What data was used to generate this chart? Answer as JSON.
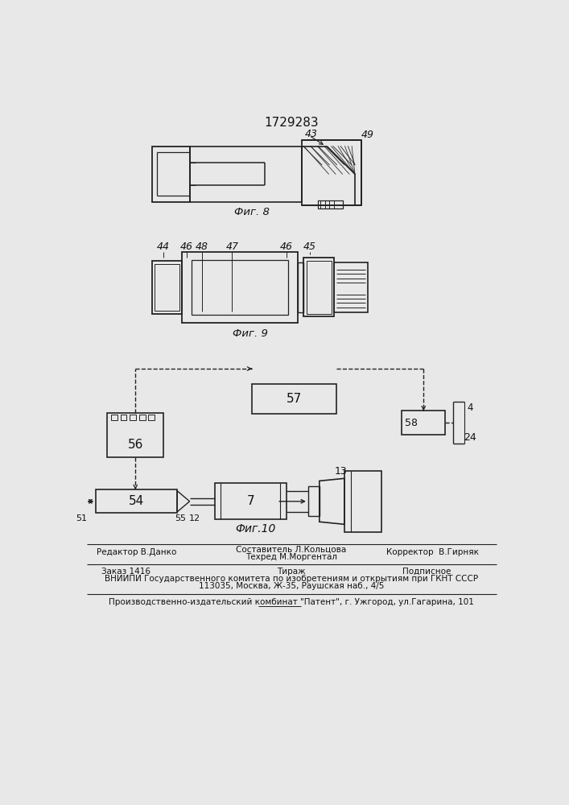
{
  "patent_number": "1729283",
  "fig8_label": "Фиг. 8",
  "fig9_label": "Фиг. 9",
  "fig10_label": "Фиг.10",
  "label_43": "43",
  "label_49": "49",
  "label_44": "44",
  "label_46a": "46",
  "label_48": "48",
  "label_47": "47",
  "label_46b": "46",
  "label_45": "45",
  "label_57": "57",
  "label_56": "56",
  "label_54": "54",
  "label_51": "51",
  "label_55": "55",
  "label_12": "12",
  "label_7": "7",
  "label_13": "13",
  "label_58": "58",
  "label_4": "4",
  "label_24": "24",
  "footer_line1_left": "Редактор В.Данко",
  "footer_line1_mid1": "Составитель Л.Кольцова",
  "footer_line1_mid2": "Техред М.Моргентал",
  "footer_line1_right": "Корректор  В.Гирняк",
  "footer_line2_left": "Заказ 1416",
  "footer_line2_mid": "Тираж",
  "footer_line2_right": "Подписное",
  "footer_line3": "ВНИИПИ Государственного комитета по изобретениям и открытиям при ГКНТ СССР",
  "footer_line4": "113035, Москва, Ж-35, Раушская наб., 4/5",
  "footer_line5": "Производственно-издательский комбинат \"Патент\", г. Ужгород, ул.Гагарина, 101",
  "line_color": "#222222",
  "bg_color": "#e8e8e8",
  "text_color": "#111111"
}
